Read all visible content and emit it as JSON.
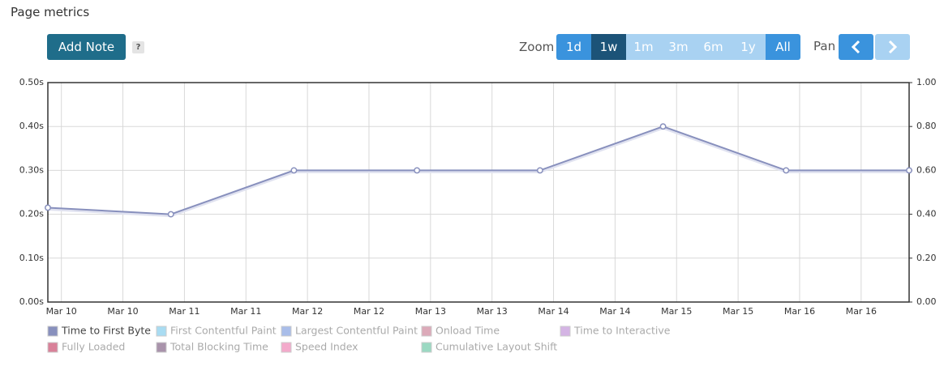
{
  "header": {
    "title": "Page metrics"
  },
  "toolbar": {
    "add_note": "Add Note",
    "help": "?",
    "zoom_label": "Zoom",
    "zoom_options": [
      {
        "label": "1d",
        "state": "enabled"
      },
      {
        "label": "1w",
        "state": "active"
      },
      {
        "label": "1m",
        "state": "disabled"
      },
      {
        "label": "3m",
        "state": "disabled"
      },
      {
        "label": "6m",
        "state": "disabled"
      },
      {
        "label": "1y",
        "state": "disabled"
      },
      {
        "label": "All",
        "state": "enabled"
      }
    ],
    "pan_label": "Pan"
  },
  "chart_data": {
    "type": "line",
    "x": [
      9.89,
      10.89,
      11.89,
      12.89,
      13.89,
      14.89,
      15.89,
      16.89
    ],
    "series": [
      {
        "name": "Time to First Byte",
        "color": "#8890bd",
        "values": [
          0.215,
          0.2,
          0.3,
          0.3,
          0.3,
          0.4,
          0.3,
          0.3
        ]
      }
    ],
    "hidden_series": [
      {
        "name": "First Contentful Paint",
        "color": "#a9dcf2"
      },
      {
        "name": "Largest Contentful Paint",
        "color": "#a9bde9"
      },
      {
        "name": "Onload Time",
        "color": "#dcaab9"
      },
      {
        "name": "Time to Interactive",
        "color": "#d4b4e4"
      },
      {
        "name": "Fully Loaded",
        "color": "#d98199"
      },
      {
        "name": "Total Blocking Time",
        "color": "#a993ab"
      },
      {
        "name": "Speed Index",
        "color": "#f3aacb"
      },
      {
        "name": "Cumulative Layout Shift",
        "color": "#9bd9c2"
      }
    ],
    "xlim": [
      9.89,
      16.89
    ],
    "xticks": [
      {
        "value": 10,
        "label": "Mar 10"
      },
      {
        "value": 10.5,
        "label": "Mar 10"
      },
      {
        "value": 11,
        "label": "Mar 11"
      },
      {
        "value": 11.5,
        "label": "Mar 11"
      },
      {
        "value": 12,
        "label": "Mar 12"
      },
      {
        "value": 12.5,
        "label": "Mar 12"
      },
      {
        "value": 13,
        "label": "Mar 13"
      },
      {
        "value": 13.5,
        "label": "Mar 13"
      },
      {
        "value": 14,
        "label": "Mar 14"
      },
      {
        "value": 14.5,
        "label": "Mar 14"
      },
      {
        "value": 15,
        "label": "Mar 15"
      },
      {
        "value": 15.5,
        "label": "Mar 15"
      },
      {
        "value": 16,
        "label": "Mar 16"
      },
      {
        "value": 16.5,
        "label": "Mar 16"
      }
    ],
    "ylim": [
      0,
      0.5
    ],
    "yticks": [
      {
        "value": 0,
        "label": "0.00s"
      },
      {
        "value": 0.1,
        "label": "0.10s"
      },
      {
        "value": 0.2,
        "label": "0.20s"
      },
      {
        "value": 0.3,
        "label": "0.30s"
      },
      {
        "value": 0.4,
        "label": "0.40s"
      },
      {
        "value": 0.5,
        "label": "0.50s"
      }
    ],
    "y2lim": [
      0,
      1
    ],
    "y2ticks": [
      {
        "value": 0,
        "label": "0.00"
      },
      {
        "value": 0.2,
        "label": "0.20"
      },
      {
        "value": 0.4,
        "label": "0.40"
      },
      {
        "value": 0.6,
        "label": "0.60"
      },
      {
        "value": 0.8,
        "label": "0.80"
      },
      {
        "value": 1,
        "label": "1.00"
      }
    ],
    "grid": true
  }
}
